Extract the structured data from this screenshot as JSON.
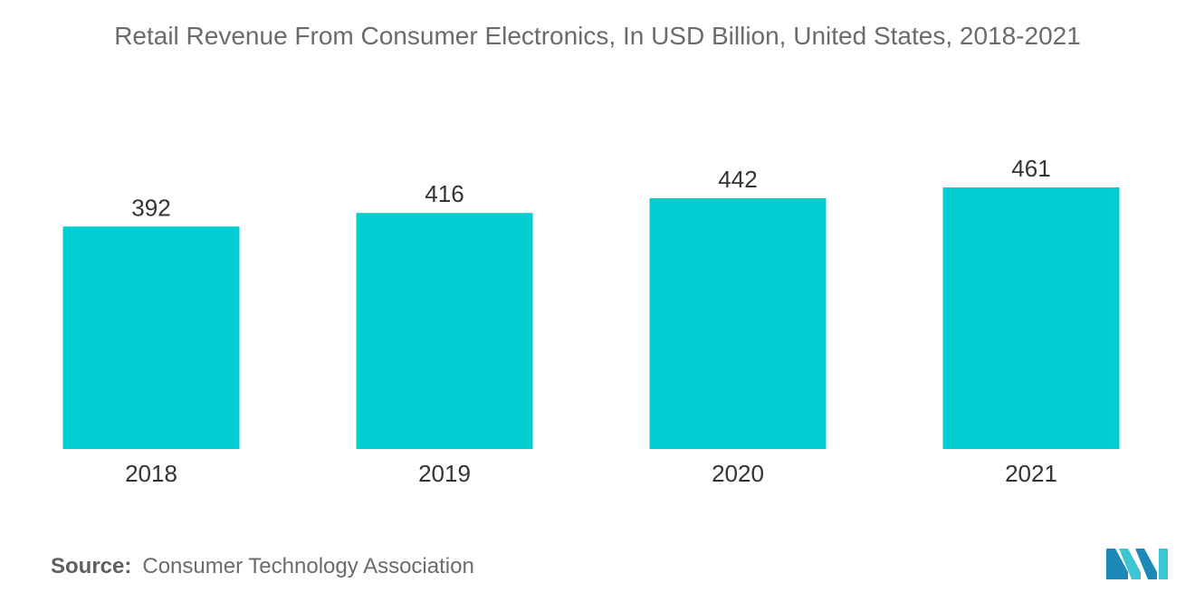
{
  "chart_data": {
    "type": "bar",
    "title": "Retail Revenue From Consumer Electronics, In USD Billion, United States, 2018-2021",
    "categories": [
      "2018",
      "2019",
      "2020",
      "2021"
    ],
    "values": [
      392,
      416,
      442,
      461
    ],
    "xlabel": "",
    "ylabel": "",
    "ylim": [
      0,
      461
    ],
    "grid": false,
    "legend": "none",
    "bar_color": "#00ced1"
  },
  "source": {
    "label": "Source:",
    "text": "Consumer Technology Association"
  },
  "logo": {
    "icon": "mordor-intelligence-logo-icon",
    "colors": [
      "#1e88b8",
      "#3cc6d4"
    ]
  }
}
